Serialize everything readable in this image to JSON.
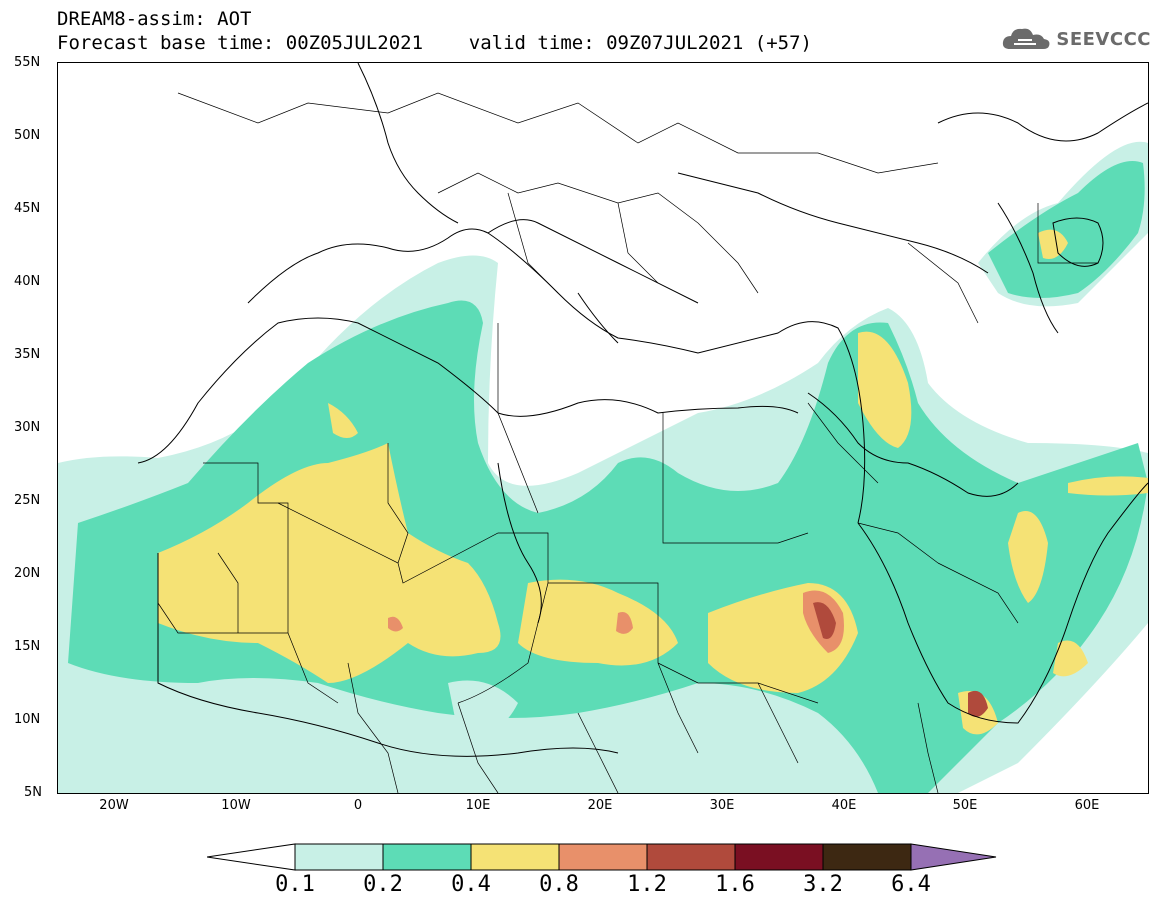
{
  "header": {
    "title_line1": "DREAM8-assim: AOT",
    "title_line2": "Forecast base time: 00Z05JUL2021    valid time: 09Z07JUL2021 (+57)"
  },
  "logo": {
    "text": "SEEVCCC",
    "icon": "cloud-icon"
  },
  "axes": {
    "lat_labels": [
      "55N",
      "50N",
      "45N",
      "40N",
      "35N",
      "30N",
      "25N",
      "20N",
      "15N",
      "10N",
      "5N"
    ],
    "lon_labels": [
      "20W",
      "10W",
      "0",
      "10E",
      "20E",
      "30E",
      "40E",
      "50E",
      "60E"
    ]
  },
  "colorbar": {
    "ticks": [
      "0.1",
      "0.2",
      "0.4",
      "0.8",
      "1.2",
      "1.6",
      "3.2",
      "6.4"
    ],
    "colors": {
      "below": "#ffffff",
      "c1": "#c8f0e6",
      "c2": "#5ddcb6",
      "c3": "#f5e275",
      "c4": "#e8906a",
      "c5": "#b04a3c",
      "c6": "#7a0f22",
      "c7": "#3d2812",
      "above": "#9670b4"
    }
  }
}
